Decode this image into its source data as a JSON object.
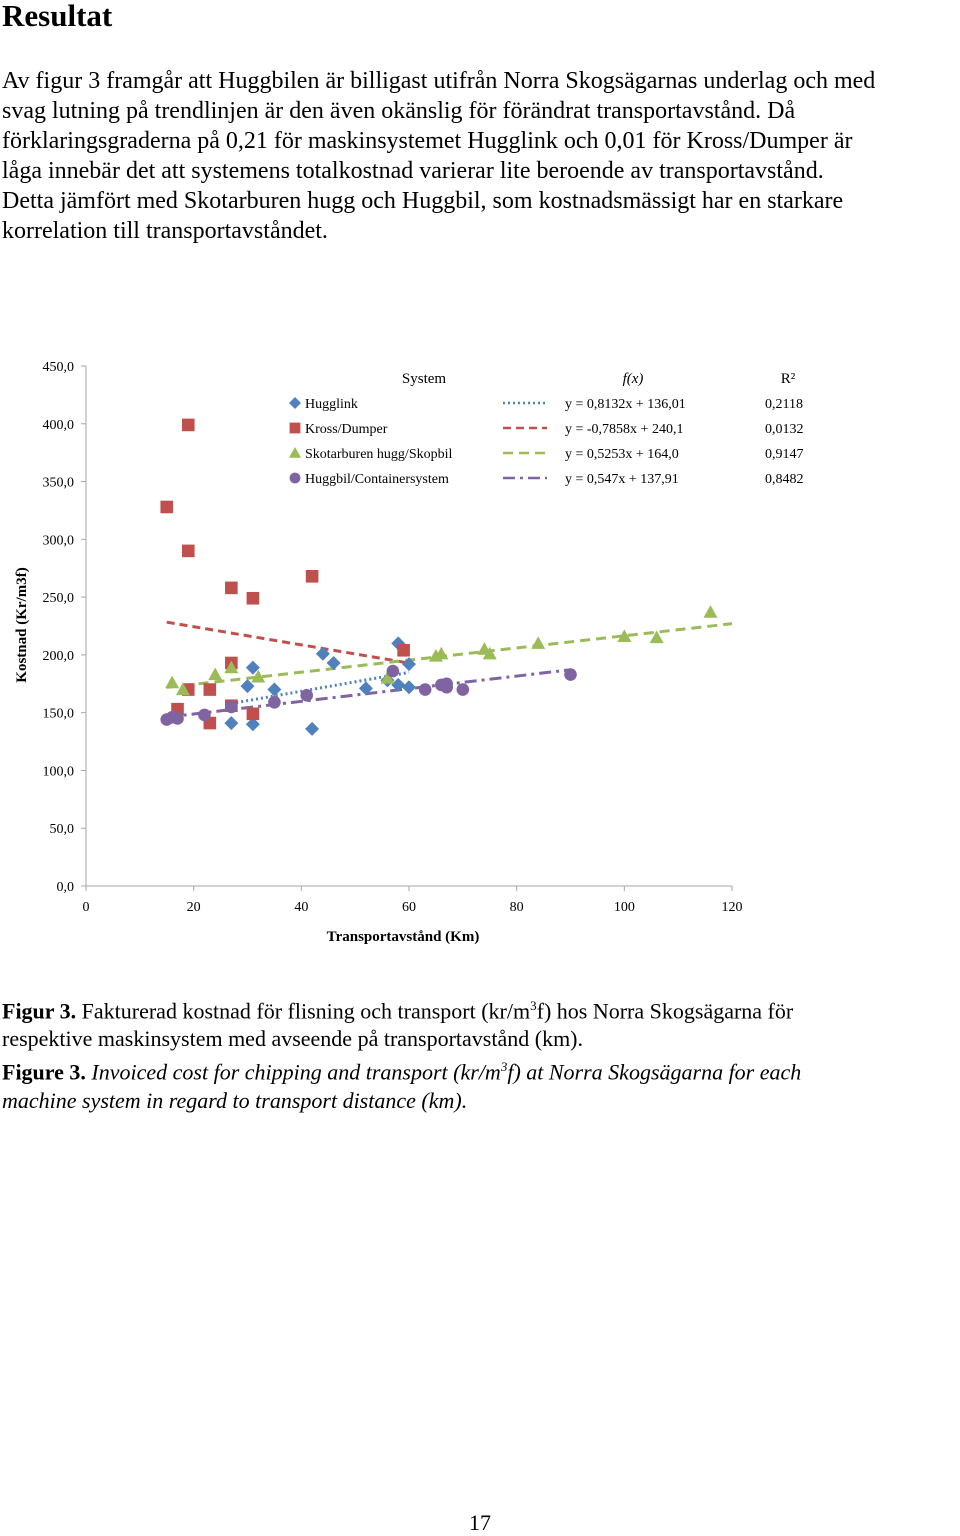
{
  "heading": "Resultat",
  "paragraph_lines": [
    "Av figur 3 framgår att Huggbilen är billigast utifrån Norra Skogsägarnas underlag och med",
    "svag lutning på trendlinjen är den även okänslig för förändrat transportavstånd. Då",
    "förklaringsgraderna på 0,21 för maskinsystemet Hugglink och 0,01 för Kross/Dumper är",
    "låga innebär det att systemens totalkostnad varierar lite beroende av transportavstånd.",
    "Detta jämfört med Skotarburen hugg och Huggbil, som kostnadsmässigt har en starkare",
    "korrelation till transportavståndet."
  ],
  "chart_data": {
    "type": "scatter",
    "xlabel": "Transportavstånd (Km)",
    "ylabel": "Kostnad (Kr/m3f)",
    "xlim": [
      0,
      120
    ],
    "ylim": [
      0,
      450
    ],
    "x_ticks": [
      "0",
      "20",
      "40",
      "60",
      "80",
      "100",
      "120"
    ],
    "y_ticks": [
      "0,0",
      "50,0",
      "100,0",
      "150,0",
      "200,0",
      "250,0",
      "300,0",
      "350,0",
      "400,0",
      "450,0"
    ],
    "grid": false,
    "legend": {
      "position": "top-right",
      "system_header": "System",
      "fx_header": "f(x)",
      "r2_header": "R²"
    },
    "series": [
      {
        "name": "Hugglink",
        "color": "#4F81BD",
        "marker": "diamond",
        "equation": "y = 0,8132x + 136,01",
        "r2": "0,2118",
        "trend": {
          "slope": 0.8132,
          "intercept": 136.01,
          "x_range": [
            27,
            60
          ]
        },
        "dash": "2,3",
        "points": [
          [
            27,
            141
          ],
          [
            30,
            173
          ],
          [
            31,
            189
          ],
          [
            31,
            140
          ],
          [
            35,
            170
          ],
          [
            42,
            136
          ],
          [
            44,
            201
          ],
          [
            46,
            193
          ],
          [
            52,
            171
          ],
          [
            56,
            178
          ],
          [
            58,
            210
          ],
          [
            58,
            174
          ],
          [
            60,
            192
          ],
          [
            60,
            172
          ]
        ]
      },
      {
        "name": "Kross/Dumper",
        "color": "#C0504D",
        "marker": "square",
        "equation": "y = -0,7858x + 240,1",
        "r2": "0,0132",
        "trend": {
          "slope": -0.7858,
          "intercept": 240.1,
          "x_range": [
            15,
            60
          ]
        },
        "dash": "8,5",
        "points": [
          [
            15,
            328
          ],
          [
            17,
            153
          ],
          [
            19,
            170
          ],
          [
            19,
            290
          ],
          [
            19,
            399
          ],
          [
            23,
            141
          ],
          [
            23,
            170
          ],
          [
            27,
            156
          ],
          [
            27,
            193
          ],
          [
            27,
            258
          ],
          [
            31,
            149
          ],
          [
            31,
            249
          ],
          [
            42,
            268
          ],
          [
            59,
            204
          ]
        ]
      },
      {
        "name": "Skotarburen hugg/Skopbil",
        "color": "#9BBB59",
        "marker": "triangle",
        "equation": "y = 0,5253x + 164,0",
        "r2": "0,9147",
        "trend": {
          "slope": 0.5253,
          "intercept": 164.0,
          "x_range": [
            15,
            120
          ]
        },
        "dash": "10,6",
        "points": [
          [
            16,
            176
          ],
          [
            18,
            170
          ],
          [
            24,
            183
          ],
          [
            27,
            189
          ],
          [
            32,
            181
          ],
          [
            56,
            180
          ],
          [
            65,
            199
          ],
          [
            66,
            201
          ],
          [
            74,
            205
          ],
          [
            75,
            201
          ],
          [
            84,
            210
          ],
          [
            100,
            216
          ],
          [
            106,
            215
          ],
          [
            116,
            237
          ]
        ]
      },
      {
        "name": "Huggbil/Containersystem",
        "color": "#8064A2",
        "marker": "circle",
        "equation": "y = 0,547x + 137,91",
        "r2": "0,8482",
        "trend": {
          "slope": 0.547,
          "intercept": 137.91,
          "x_range": [
            15,
            90
          ]
        },
        "dash": "12,5,3,5",
        "points": [
          [
            15,
            144
          ],
          [
            16,
            146
          ],
          [
            17,
            145
          ],
          [
            22,
            148
          ],
          [
            27,
            155
          ],
          [
            35,
            159
          ],
          [
            41,
            165
          ],
          [
            57,
            186
          ],
          [
            63,
            170
          ],
          [
            66,
            174
          ],
          [
            67,
            172
          ],
          [
            67,
            175
          ],
          [
            70,
            170
          ],
          [
            90,
            183
          ]
        ]
      }
    ]
  },
  "caption": {
    "sv_label": "Figur 3.",
    "sv_text_a": " Fakturerad kostnad för flisning och transport (kr/m",
    "sv_sup": "3",
    "sv_text_b": "f) hos Norra Skogsägarna för",
    "sv_line2": "respektive maskinsystem med avseende på transportavstånd (km).",
    "en_label": "Figure 3.",
    "en_text_a": " Invoiced cost for chipping and transport (kr/m",
    "en_sup": "3",
    "en_text_b": "f) at Norra Skogsägarna for each",
    "en_line2": "machine system in regard to transport distance (km)."
  },
  "page_number": "17"
}
